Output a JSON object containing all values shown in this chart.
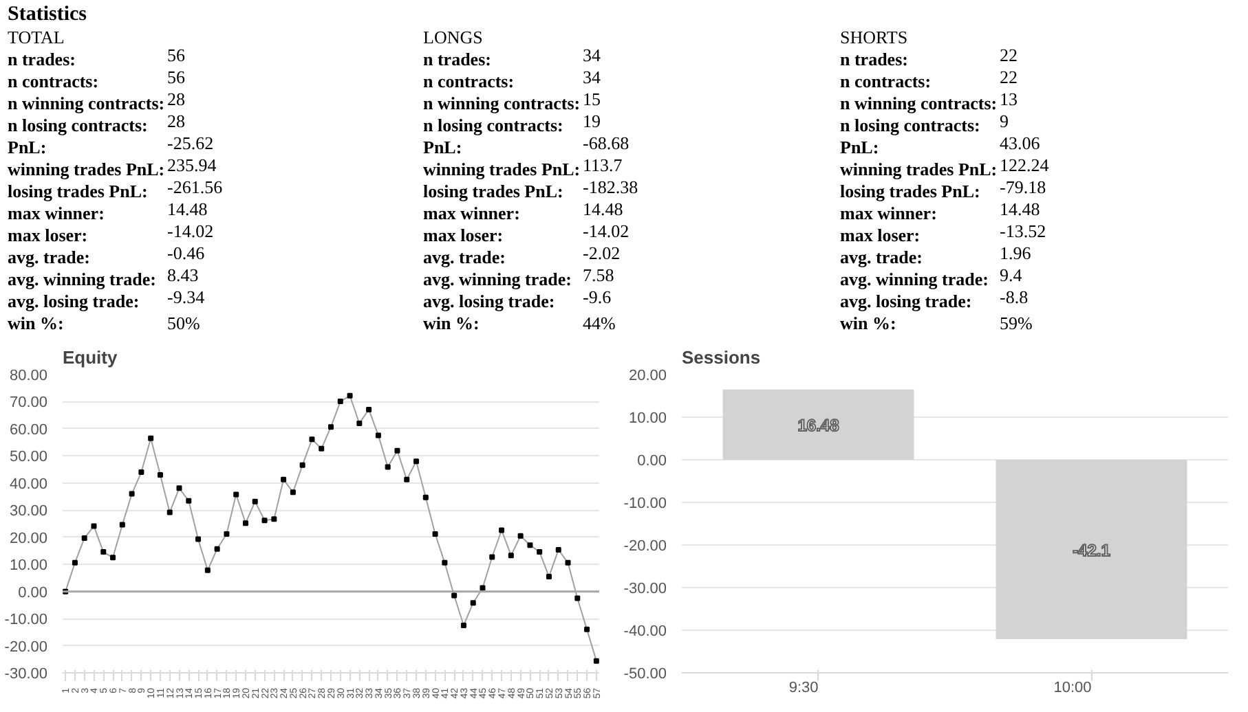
{
  "chart_data": [
    {
      "type": "other",
      "title": "Statistics",
      "annotations": [
        "TOTAL",
        "n trades:",
        "56",
        "n contracts:",
        "56",
        "n winning contracts:",
        "28",
        "n losing contracts:",
        "28",
        "PnL:",
        "-25.62",
        "winning trades PnL:",
        "235.94",
        "losing trades PnL:",
        "-261.56",
        "max winner:",
        "14.48",
        "max loser:",
        "-14.02",
        "avg. trade:",
        "-0.46",
        "avg. winning trade:",
        "8.43",
        "avg. losing trade:",
        "-9.34",
        "win %:",
        "50%",
        "LONGS",
        "n trades:",
        "34",
        "n contracts:",
        "34",
        "n winning contracts:",
        "15",
        "n losing contracts:",
        "19",
        "PnL:",
        "-68.68",
        "winning trades PnL:",
        "113.7",
        "losing trades PnL:",
        "-182.38",
        "max winner:",
        "14.48",
        "max loser:",
        "-14.02",
        "avg. trade:",
        "-2.02",
        "avg. winning trade:",
        "7.58",
        "avg. losing trade:",
        "-9.6",
        "win %:",
        "44%",
        "SHORTS",
        "n trades:",
        "22",
        "n contracts:",
        "22",
        "n winning contracts:",
        "13",
        "n losing contracts:",
        "9",
        "PnL:",
        "43.06",
        "winning trades PnL:",
        "122.24",
        "losing trades PnL:",
        "-79.18",
        "max winner:",
        "14.48",
        "max loser:",
        "-13.52",
        "avg. trade:",
        "1.96",
        "avg. winning trade:",
        "9.4",
        "avg. losing trade:",
        "-8.8",
        "win %:",
        "59%"
      ]
    },
    {
      "type": "line",
      "title": "Equity",
      "categories": [
        "1",
        "2",
        "3",
        "4",
        "5",
        "6",
        "7",
        "8",
        "9",
        "10",
        "11",
        "12",
        "13",
        "14",
        "15",
        "16",
        "17",
        "18",
        "19",
        "20",
        "21",
        "22",
        "23",
        "24",
        "25",
        "26",
        "27",
        "28",
        "29",
        "30",
        "31",
        "32",
        "33",
        "34",
        "35",
        "36",
        "37",
        "38",
        "39",
        "40",
        "41",
        "42",
        "43",
        "44",
        "45",
        "46",
        "47",
        "48",
        "49",
        "50",
        "51",
        "52",
        "53",
        "54",
        "55",
        "56",
        "57"
      ],
      "series": [
        {
          "color": "#a0a0a0",
          "values": [
            0,
            10.6,
            19.7,
            24.1,
            14.6,
            12.5,
            24.6,
            36.0,
            44.0,
            56.5,
            43.0,
            29.2,
            38.1,
            33.4,
            19.3,
            7.8,
            15.7,
            21.2,
            35.8,
            25.2,
            33.2,
            26.2,
            26.7,
            41.3,
            36.6,
            46.6,
            56.1,
            52.7,
            60.7,
            70.1,
            72.2,
            62.0,
            67.1,
            57.6,
            45.9,
            51.9,
            41.3,
            48.0,
            34.7,
            21.2,
            10.6,
            -1.5,
            -12.5,
            -4.2,
            1.3,
            12.7,
            22.6,
            13.3,
            20.5,
            17.1,
            14.6,
            5.5,
            15.4,
            10.6,
            -2.5,
            -14.0,
            -25.6
          ]
        }
      ],
      "ylim": [
        -30,
        80
      ],
      "yticks": [
        {
          "value": -30,
          "label": "-30.00"
        },
        {
          "value": -20,
          "label": "-20.00"
        },
        {
          "value": -10,
          "label": "-10.00"
        },
        {
          "value": 0,
          "label": "0.00"
        },
        {
          "value": 10,
          "label": "10.00"
        },
        {
          "value": 20,
          "label": "20.00"
        },
        {
          "value": 30,
          "label": "30.00"
        },
        {
          "value": 40,
          "label": "40.00"
        },
        {
          "value": 50,
          "label": "50.00"
        },
        {
          "value": 60,
          "label": "60.00"
        },
        {
          "value": 70,
          "label": "70.00"
        },
        {
          "value": 80,
          "label": "80.00"
        }
      ],
      "ref_lines": [
        {
          "axis": "y",
          "value": 0,
          "color": "#a6a6a6"
        }
      ],
      "grid": "y",
      "marker": "square",
      "line_style": "solid"
    },
    {
      "type": "bar",
      "title": "Sessions",
      "categories": [
        "9:30",
        "10:00"
      ],
      "values": [
        16.48,
        -42.1
      ],
      "color": "#d3d3d3",
      "data_labels": true,
      "ylim": [
        -50,
        20
      ],
      "yticks": [
        {
          "value": -50,
          "label": "-50.00"
        },
        {
          "value": -40,
          "label": "-40.00"
        },
        {
          "value": -30,
          "label": "-30.00"
        },
        {
          "value": -20,
          "label": "-20.00"
        },
        {
          "value": -10,
          "label": "-10.00"
        },
        {
          "value": 0,
          "label": "0.00"
        },
        {
          "value": 10,
          "label": "10.00"
        },
        {
          "value": 20,
          "label": "20.00"
        }
      ],
      "grid": "y"
    }
  ]
}
